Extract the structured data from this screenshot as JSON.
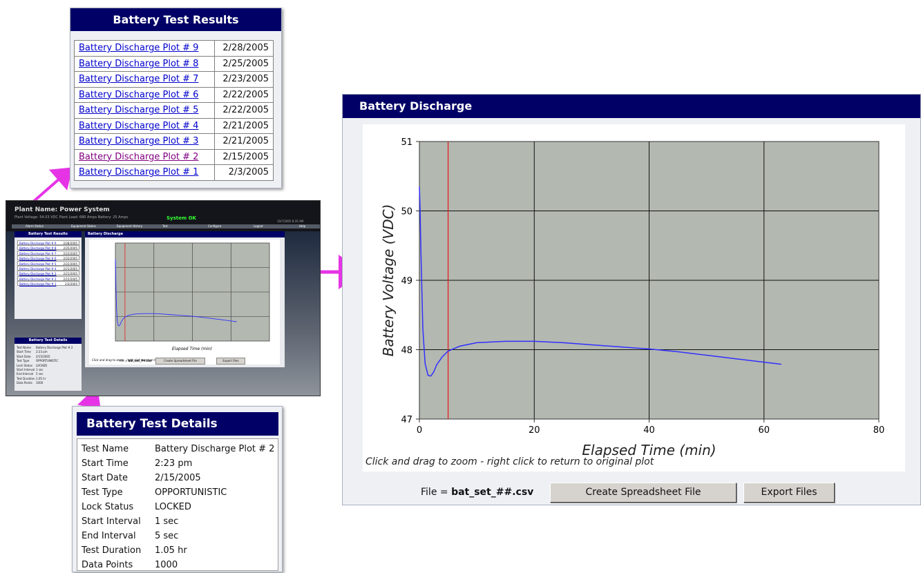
{
  "results": {
    "title": "Battery Test Results",
    "rows": [
      {
        "label": "Battery Discharge Plot # 9",
        "date": "2/28/2005"
      },
      {
        "label": "Battery Discharge Plot # 8",
        "date": "2/25/2005"
      },
      {
        "label": "Battery Discharge Plot # 7",
        "date": "2/23/2005"
      },
      {
        "label": "Battery Discharge Plot # 6",
        "date": "2/22/2005"
      },
      {
        "label": "Battery Discharge Plot # 5",
        "date": "2/22/2005"
      },
      {
        "label": "Battery Discharge Plot # 4",
        "date": "2/21/2005"
      },
      {
        "label": "Battery Discharge Plot # 3",
        "date": "2/21/2005"
      },
      {
        "label": "Battery Discharge Plot # 2",
        "date": "2/15/2005"
      },
      {
        "label": "Battery Discharge Plot # 1",
        "date": "2/3/2005"
      }
    ],
    "visited_index": 7
  },
  "details": {
    "title": "Battery Test Details",
    "rows": [
      {
        "key": "Test Name",
        "value": "Battery Discharge Plot # 2"
      },
      {
        "key": "Start Time",
        "value": "2:23 pm"
      },
      {
        "key": "Start Date",
        "value": "2/15/2005"
      },
      {
        "key": "Test Type",
        "value": "OPPORTUNISTIC"
      },
      {
        "key": "Lock Status",
        "value": "LOCKED"
      },
      {
        "key": "Start Interval",
        "value": "1 sec"
      },
      {
        "key": "End Interval",
        "value": "5 sec"
      },
      {
        "key": "Test Duration",
        "value": "1.05 hr"
      },
      {
        "key": "Data Points",
        "value": "1000"
      }
    ]
  },
  "discharge": {
    "title": "Battery Discharge",
    "hint": "Click and drag to zoom - right click to return to original plot",
    "file_prefix": "File = ",
    "file_name": "bat_set_##.csv",
    "create_button": "Create Spreadsheet File",
    "export_button": "Export Files"
  },
  "thumbnail": {
    "plant_label": "Plant Name: Power System",
    "status_line": "Plant Voltage: 54.03 VDC    Plant Load: 680 Amps    Battery: 25 Amps",
    "system_status": "System OK",
    "clock": "10/7/2005 8:35 AM",
    "menu": [
      "Alarm Status",
      "Equipment Status",
      "Equipment History",
      "Test",
      "Configure",
      "Logout",
      "Help"
    ]
  },
  "colors": {
    "header_navy": "#000066",
    "plot_bg": "#b3b8b0",
    "curve": "#3030ff",
    "marker": "#e02020",
    "arrow": "#e633e6",
    "link": "#0000cc",
    "visited_link": "#800080"
  },
  "chart_data": {
    "type": "line",
    "title": "",
    "xlabel": "Elapsed Time (min)",
    "ylabel": "Battery Voltage (VDC)",
    "xlim": [
      0,
      80
    ],
    "ylim": [
      47,
      51
    ],
    "xticks": [
      0,
      20,
      40,
      60,
      80
    ],
    "yticks": [
      47,
      48,
      49,
      50,
      51
    ],
    "grid": true,
    "marker_x": 5,
    "series": [
      {
        "x": [
          0,
          0.1,
          0.3,
          0.6,
          1.0,
          1.5,
          2.0,
          2.5,
          3.0,
          4.0,
          5.0,
          7.0,
          10,
          15,
          20,
          25,
          30,
          35,
          40,
          45,
          50,
          55,
          60,
          63
        ],
        "y": [
          50.35,
          50.1,
          49.3,
          48.3,
          47.8,
          47.63,
          47.62,
          47.68,
          47.78,
          47.9,
          47.98,
          48.05,
          48.1,
          48.12,
          48.12,
          48.1,
          48.07,
          48.04,
          48.01,
          47.97,
          47.92,
          47.87,
          47.82,
          47.79
        ]
      }
    ]
  }
}
